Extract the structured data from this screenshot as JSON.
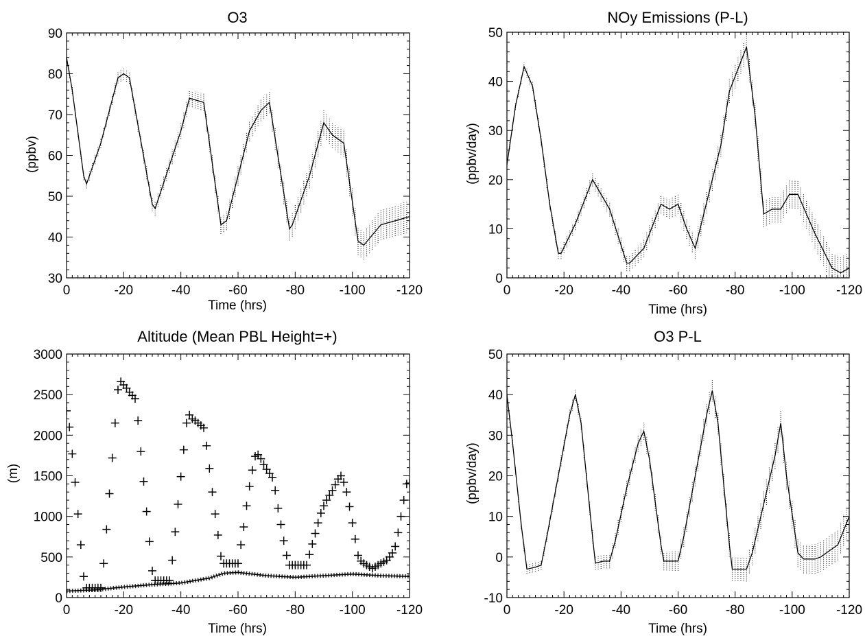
{
  "chart_data": [
    {
      "type": "line",
      "title": "O3",
      "xlabel": "Time (hrs)",
      "ylabel": "(ppbv)",
      "xlim": [
        0,
        -120
      ],
      "ylim": [
        30,
        90
      ],
      "x_ticks": [
        0,
        -20,
        -40,
        -60,
        -80,
        -100,
        -120
      ],
      "y_ticks": [
        30,
        40,
        50,
        60,
        70,
        80,
        90
      ],
      "x_tick_labels": [
        "0",
        "-20",
        "-40",
        "-60",
        "-80",
        "-100",
        "-120"
      ],
      "y_tick_labels": [
        "30",
        "40",
        "50",
        "60",
        "70",
        "80",
        "90"
      ],
      "series": [
        {
          "style": "solid-line",
          "x": [
            0,
            -2,
            -6,
            -7,
            -12,
            -18,
            -20,
            -22,
            -30,
            -31,
            -40,
            -43,
            -48,
            -54,
            -56,
            -64,
            -68,
            -71,
            -78,
            -79,
            -85,
            -90,
            -93,
            -97,
            -102,
            -104,
            -110,
            -115,
            -120
          ],
          "y": [
            84,
            76,
            55,
            53,
            63,
            79,
            80,
            79,
            48,
            47,
            66,
            74,
            73,
            43,
            44,
            66,
            71,
            73,
            42,
            43,
            55,
            68,
            65,
            63,
            39,
            38,
            43,
            44,
            45
          ]
        }
      ]
    },
    {
      "type": "line",
      "title": "NOy Emissions (P-L)",
      "xlabel": "Time (hrs)",
      "ylabel": "(ppbv/day)",
      "xlim": [
        0,
        -120
      ],
      "ylim": [
        0,
        50
      ],
      "x_ticks": [
        0,
        -20,
        -40,
        -60,
        -80,
        -100,
        -120
      ],
      "y_ticks": [
        0,
        10,
        20,
        30,
        40,
        50
      ],
      "x_tick_labels": [
        "0",
        "-20",
        "-40",
        "-60",
        "-80",
        "-100",
        "-120"
      ],
      "y_tick_labels": [
        "0",
        "10",
        "20",
        "30",
        "40",
        "50"
      ],
      "series": [
        {
          "style": "solid-line",
          "x": [
            0,
            -3,
            -6,
            -9,
            -12,
            -15,
            -18,
            -19,
            -24,
            -30,
            -36,
            -42,
            -43,
            -48,
            -54,
            -57,
            -60,
            -63,
            -66,
            -72,
            -75,
            -78,
            -84,
            -87,
            -90,
            -93,
            -96,
            -99,
            -102,
            -108,
            -114,
            -117,
            -120
          ],
          "y": [
            23,
            35,
            43,
            39,
            28,
            15,
            5,
            5,
            11,
            20,
            14,
            3,
            3,
            6,
            15,
            14,
            15,
            10,
            6,
            20,
            27,
            38,
            47,
            33,
            13,
            14,
            14,
            17,
            17,
            9,
            2,
            1,
            2
          ]
        }
      ]
    },
    {
      "type": "scatter",
      "title": "Altitude (Mean PBL Height=+)",
      "xlabel": "Time (hrs)",
      "ylabel": "(m)",
      "xlim": [
        0,
        -120
      ],
      "ylim": [
        0,
        3000
      ],
      "x_ticks": [
        0,
        -20,
        -40,
        -60,
        -80,
        -100,
        -120
      ],
      "y_ticks": [
        0,
        500,
        1000,
        1500,
        2000,
        2500,
        3000
      ],
      "x_tick_labels": [
        "0",
        "-20",
        "-40",
        "-60",
        "-80",
        "-100",
        "-120"
      ],
      "y_tick_labels": [
        "0",
        "500",
        "1000",
        "1500",
        "2000",
        "2500",
        "3000"
      ],
      "series": [
        {
          "style": "plus-markers",
          "x": [
            0,
            -1,
            -2,
            -3,
            -4,
            -5,
            -6,
            -7,
            -8,
            -9,
            -10,
            -11,
            -12,
            -13,
            -14,
            -15,
            -16,
            -17,
            -18,
            -19,
            -20,
            -21,
            -22,
            -23,
            -24,
            -25,
            -26,
            -27,
            -28,
            -29,
            -30,
            -31,
            -32,
            -33,
            -34,
            -35,
            -36,
            -37,
            -38,
            -39,
            -40,
            -41,
            -42,
            -43,
            -44,
            -45,
            -46,
            -47,
            -48,
            -49,
            -50,
            -51,
            -52,
            -53,
            -54,
            -55,
            -56,
            -57,
            -58,
            -59,
            -60,
            -61,
            -62,
            -63,
            -64,
            -65,
            -66,
            -67,
            -68,
            -69,
            -70,
            -71,
            -72,
            -73,
            -74,
            -75,
            -76,
            -77,
            -78,
            -79,
            -80,
            -81,
            -82,
            -83,
            -84,
            -85,
            -86,
            -87,
            -88,
            -89,
            -90,
            -91,
            -92,
            -93,
            -94,
            -95,
            -96,
            -97,
            -98,
            -99,
            -100,
            -101,
            -102,
            -103,
            -104,
            -105,
            -106,
            -107,
            -108,
            -109,
            -110,
            -111,
            -112,
            -113,
            -114,
            -115,
            -116,
            -117,
            -118,
            -119,
            -120
          ],
          "y": [
            2300,
            2100,
            1770,
            1420,
            1030,
            650,
            260,
            120,
            120,
            120,
            120,
            120,
            120,
            420,
            840,
            1280,
            1720,
            2150,
            2560,
            2660,
            2620,
            2580,
            2530,
            2490,
            2450,
            2180,
            1800,
            1430,
            1060,
            690,
            330,
            210,
            210,
            210,
            210,
            210,
            210,
            460,
            810,
            1150,
            1490,
            1820,
            2150,
            2250,
            2200,
            2180,
            2150,
            2120,
            2090,
            1870,
            1590,
            1300,
            1030,
            770,
            510,
            420,
            420,
            420,
            420,
            420,
            420,
            650,
            870,
            1130,
            1370,
            1570,
            1740,
            1760,
            1710,
            1640,
            1580,
            1530,
            1480,
            1320,
            1100,
            900,
            700,
            520,
            400,
            400,
            400,
            400,
            400,
            400,
            400,
            530,
            660,
            790,
            920,
            1040,
            1130,
            1200,
            1260,
            1320,
            1390,
            1460,
            1500,
            1420,
            1300,
            1120,
            920,
            720,
            520,
            450,
            420,
            400,
            380,
            360,
            380,
            400,
            420,
            440,
            460,
            500,
            550,
            630,
            800,
            1000,
            1200,
            1400,
            1410
          ]
        },
        {
          "style": "dotted-band",
          "x": [
            0,
            -10,
            -20,
            -30,
            -40,
            -50,
            -55,
            -60,
            -65,
            -70,
            -80,
            -90,
            -100,
            -110,
            -120
          ],
          "y": [
            80,
            95,
            130,
            160,
            180,
            240,
            300,
            310,
            290,
            270,
            250,
            270,
            290,
            270,
            260
          ]
        }
      ]
    },
    {
      "type": "line",
      "title": "O3 P-L",
      "xlabel": "Time (hrs)",
      "ylabel": "(ppbv/day)",
      "xlim": [
        0,
        -120
      ],
      "ylim": [
        -10,
        50
      ],
      "x_ticks": [
        0,
        -20,
        -40,
        -60,
        -80,
        -100,
        -120
      ],
      "y_ticks": [
        -10,
        0,
        10,
        20,
        30,
        40,
        50
      ],
      "x_tick_labels": [
        "0",
        "-20",
        "-40",
        "-60",
        "-80",
        "-100",
        "-120"
      ],
      "y_tick_labels": [
        "-10",
        "0",
        "10",
        "20",
        "30",
        "40",
        "50"
      ],
      "series": [
        {
          "style": "solid-line",
          "x": [
            0,
            -2,
            -5,
            -7,
            -10,
            -12,
            -14,
            -18,
            -22,
            -24,
            -26,
            -30,
            -31,
            -34,
            -36,
            -38,
            -42,
            -46,
            -48,
            -50,
            -54,
            -55,
            -58,
            -60,
            -62,
            -66,
            -70,
            -72,
            -74,
            -78,
            -79,
            -82,
            -84,
            -86,
            -90,
            -94,
            -96,
            -98,
            -102,
            -104,
            -108,
            -110,
            -114,
            -116,
            -120
          ],
          "y": [
            40,
            28,
            8,
            -3,
            -2.5,
            -2,
            5,
            20,
            35,
            40,
            33,
            5,
            -1.5,
            -1,
            -1,
            4,
            17,
            28,
            31,
            24,
            3,
            -1,
            -1,
            -1,
            5,
            20,
            35,
            41,
            33,
            3,
            -3,
            -3,
            -3,
            1,
            13,
            25,
            33,
            20,
            1,
            -0.5,
            -0.5,
            0,
            2,
            3,
            10
          ]
        }
      ]
    }
  ]
}
